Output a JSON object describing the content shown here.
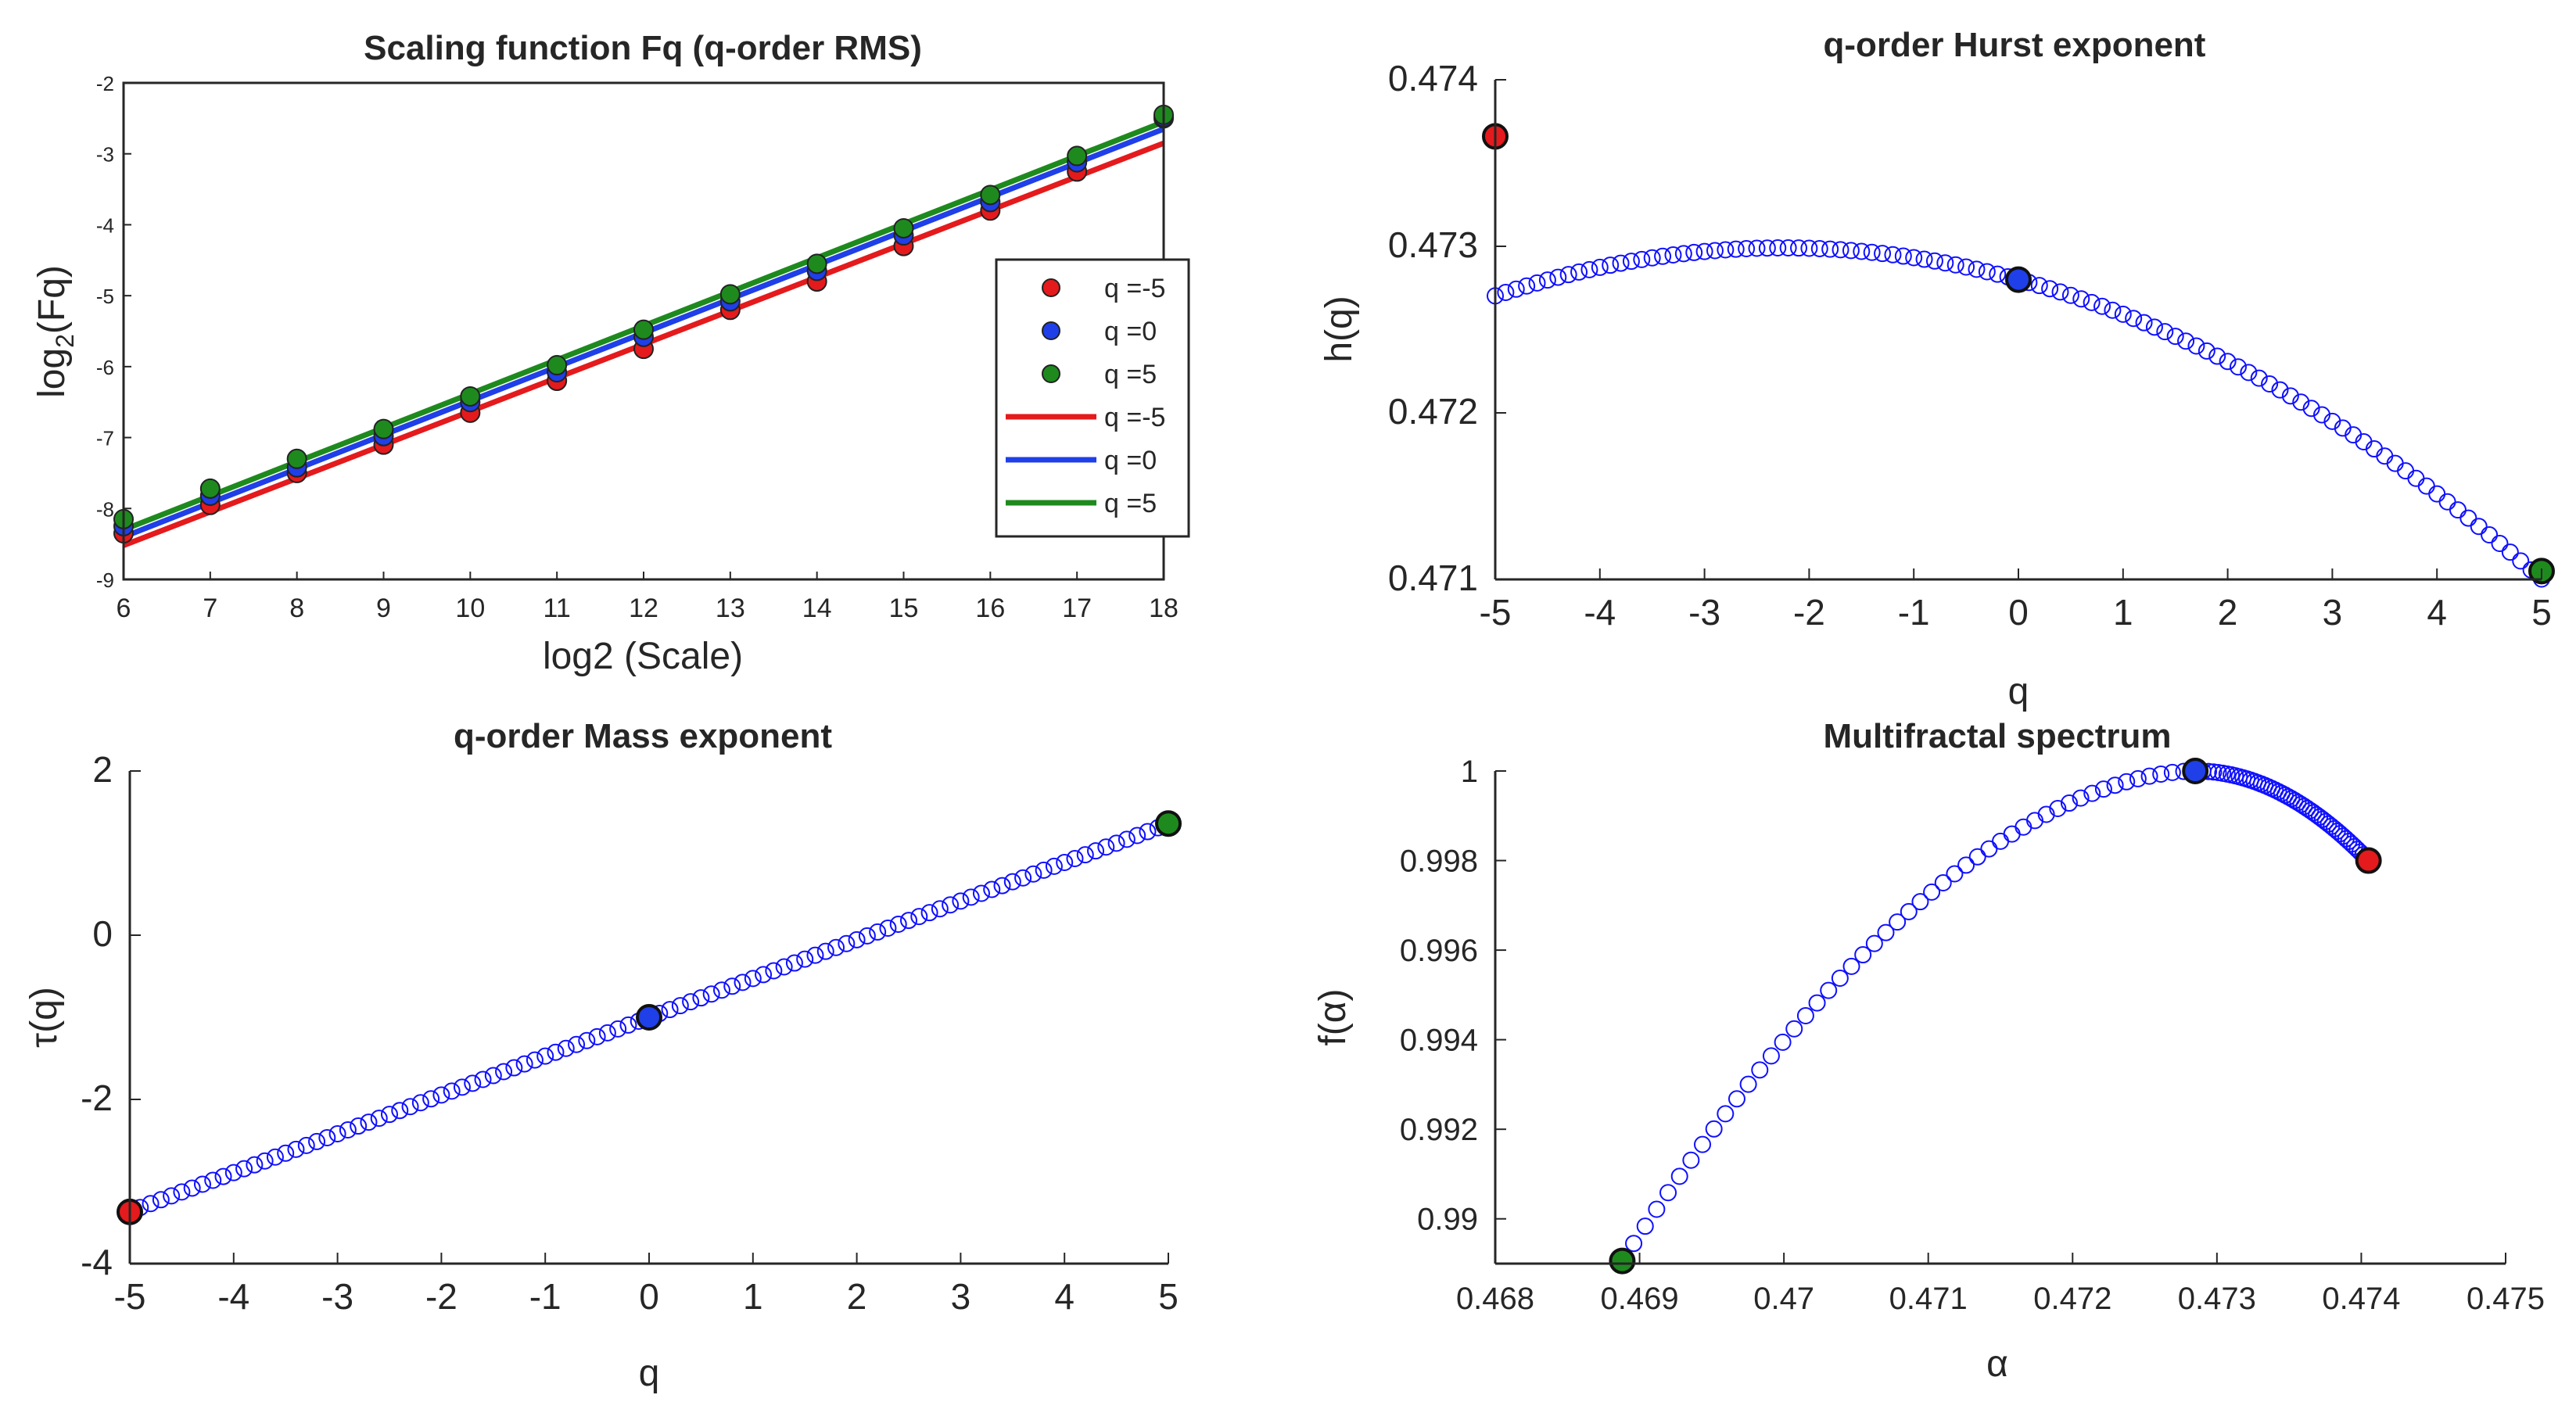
{
  "colors": {
    "red": "#e41a1c",
    "blue": "#1f3fe8",
    "green": "#1e8a1e",
    "marker": "#1010ff",
    "axis": "#262626"
  },
  "chart_data": [
    {
      "id": "p1",
      "type": "scatter",
      "title": "Scaling function Fq (q-order RMS)",
      "xlabel": "log2 (Scale)",
      "ylabel_main": "log",
      "ylabel_sub": "2",
      "ylabel_tail": "(Fq)",
      "xlim": [
        6,
        18
      ],
      "ylim": [
        -9,
        -2
      ],
      "xticks": [
        6,
        7,
        8,
        9,
        10,
        11,
        12,
        13,
        14,
        15,
        16,
        17,
        18
      ],
      "yticks": [
        -9,
        -8,
        -7,
        -6,
        -5,
        -4,
        -3,
        -2
      ],
      "x": [
        6,
        7,
        8,
        9,
        10,
        11,
        12,
        13,
        14,
        15,
        16,
        17,
        18
      ],
      "series": [
        {
          "name": "q =-5",
          "color": "#e41a1c",
          "values": [
            -8.35,
            -7.95,
            -7.5,
            -7.1,
            -6.65,
            -6.2,
            -5.75,
            -5.2,
            -4.8,
            -4.3,
            -3.8,
            -3.25,
            -2.5
          ],
          "fit": [
            -8.52,
            -2.85
          ]
        },
        {
          "name": "q =0",
          "color": "#1f3fe8",
          "values": [
            -8.25,
            -7.82,
            -7.42,
            -6.98,
            -6.5,
            -6.08,
            -5.58,
            -5.08,
            -4.65,
            -4.15,
            -3.68,
            -3.12,
            -2.48
          ],
          "fit": [
            -8.4,
            -2.65
          ]
        },
        {
          "name": "q =5",
          "color": "#1e8a1e",
          "values": [
            -8.15,
            -7.72,
            -7.3,
            -6.88,
            -6.42,
            -5.98,
            -5.48,
            -4.98,
            -4.55,
            -4.05,
            -3.58,
            -3.03,
            -2.45
          ],
          "fit": [
            -8.3,
            -2.55
          ]
        }
      ],
      "legend": [
        "q =-5",
        "q =0",
        "q =5",
        "q =-5",
        "q =0",
        "q =5"
      ],
      "legend_position": "right"
    },
    {
      "id": "p2",
      "type": "scatter",
      "title": "q-order Hurst exponent",
      "xlabel": "q",
      "ylabel": "h(q)",
      "xlim": [
        -5,
        5
      ],
      "ylim": [
        0.471,
        0.474
      ],
      "xticks": [
        -5,
        -4,
        -3,
        -2,
        -1,
        0,
        1,
        2,
        3,
        4,
        5
      ],
      "yticks": [
        0.471,
        0.472,
        0.473,
        0.474
      ],
      "ytick_labels": [
        "0.471",
        "0.472",
        "0.473",
        "0.474"
      ],
      "curve": {
        "q_min": -5,
        "q_max": 5,
        "n": 101,
        "h_at_q0": 0.4728,
        "slope": -0.00017,
        "curvature": -3.79e-05
      },
      "highlight": [
        {
          "x": -5,
          "y": 0.47366,
          "color": "#e41a1c"
        },
        {
          "x": 0,
          "y": 0.4728,
          "color": "#1f3fe8"
        },
        {
          "x": 5,
          "y": 0.47105,
          "color": "#1e8a1e"
        }
      ]
    },
    {
      "id": "p3",
      "type": "scatter",
      "title": "q-order Mass exponent",
      "xlabel": "q",
      "ylabel": "τ(q)",
      "xlim": [
        -5,
        5
      ],
      "ylim": [
        -4,
        2
      ],
      "xticks": [
        -5,
        -4,
        -3,
        -2,
        -1,
        0,
        1,
        2,
        3,
        4,
        5
      ],
      "yticks": [
        -4,
        -2,
        0,
        2
      ],
      "ytick_labels": [
        "-4",
        "-2",
        "0",
        "2"
      ],
      "curve": {
        "q_min": -5,
        "q_max": 5,
        "n": 101
      },
      "highlight": [
        {
          "x": -5,
          "y": -3.37,
          "color": "#e41a1c"
        },
        {
          "x": 0,
          "y": -1,
          "color": "#1f3fe8"
        },
        {
          "x": 5,
          "y": 1.36,
          "color": "#1e8a1e"
        }
      ]
    },
    {
      "id": "p4",
      "type": "scatter",
      "title": "Multifractal spectrum",
      "xlabel": "α",
      "ylabel": "f(α)",
      "xlim": [
        0.468,
        0.475
      ],
      "ylim": [
        0.989,
        1
      ],
      "xticks": [
        0.468,
        0.469,
        0.47,
        0.471,
        0.472,
        0.473,
        0.474,
        0.475
      ],
      "xtick_labels": [
        "0.468",
        "0.469",
        "0.47",
        "0.471",
        "0.472",
        "0.473",
        "0.474",
        "0.475"
      ],
      "yticks": [
        0.99,
        0.992,
        0.994,
        0.996,
        0.998,
        1
      ],
      "ytick_labels": [
        "0.99",
        "0.992",
        "0.994",
        "0.996",
        "0.998",
        "1"
      ],
      "curve": {
        "q_min": -5,
        "q_max": 5,
        "n": 101
      },
      "highlight": [
        {
          "x": 0.47405,
          "y": 0.998,
          "color": "#e41a1c"
        },
        {
          "x": 0.47285,
          "y": 1,
          "color": "#1f3fe8"
        },
        {
          "x": 0.46888,
          "y": 0.98906,
          "color": "#1e8a1e"
        }
      ]
    }
  ]
}
